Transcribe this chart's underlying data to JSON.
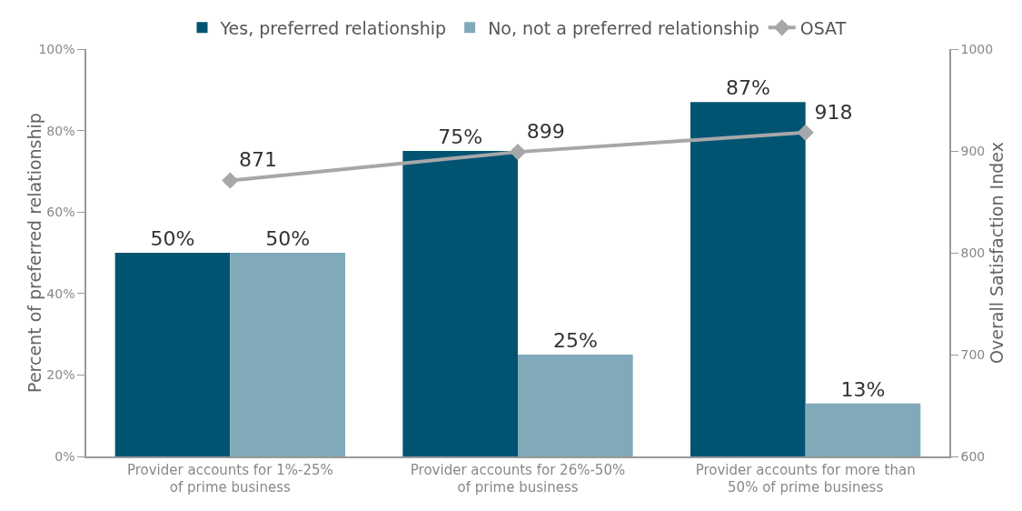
{
  "chart_data": {
    "type": "bar",
    "categories": [
      "Provider accounts for 1%-25%\nof prime business",
      "Provider accounts for 26%-50%\nof prime business",
      "Provider accounts for more than\n50% of prime business"
    ],
    "series": [
      {
        "name": "Yes, preferred relationship",
        "color": "#005472",
        "values": [
          50,
          75,
          87
        ],
        "value_labels": [
          "50%",
          "75%",
          "87%"
        ]
      },
      {
        "name": "No, not a preferred relationship",
        "color": "#80aaba",
        "values": [
          50,
          25,
          13
        ],
        "value_labels": [
          "50%",
          "25%",
          "13%"
        ]
      },
      {
        "name": "OSAT",
        "type": "line",
        "axis": "y2",
        "color": "#a7a7a9",
        "marker": "diamond",
        "values": [
          871,
          899,
          918
        ],
        "value_labels": [
          "871",
          "899",
          "918"
        ]
      }
    ],
    "ylabel": "Percent of preferred relationship",
    "y2label": "Overall Satisfaction Index",
    "ylim": [
      0,
      100
    ],
    "yticks": [
      {
        "value": 0,
        "label": "0%"
      },
      {
        "value": 20,
        "label": "20%"
      },
      {
        "value": 40,
        "label": "40%"
      },
      {
        "value": 60,
        "label": "60%"
      },
      {
        "value": 80,
        "label": "80%"
      },
      {
        "value": 100,
        "label": "100%"
      }
    ],
    "y2lim": [
      600,
      1000
    ],
    "y2ticks": [
      600,
      700,
      800,
      900,
      1000
    ],
    "grid": false,
    "legend": "top"
  }
}
